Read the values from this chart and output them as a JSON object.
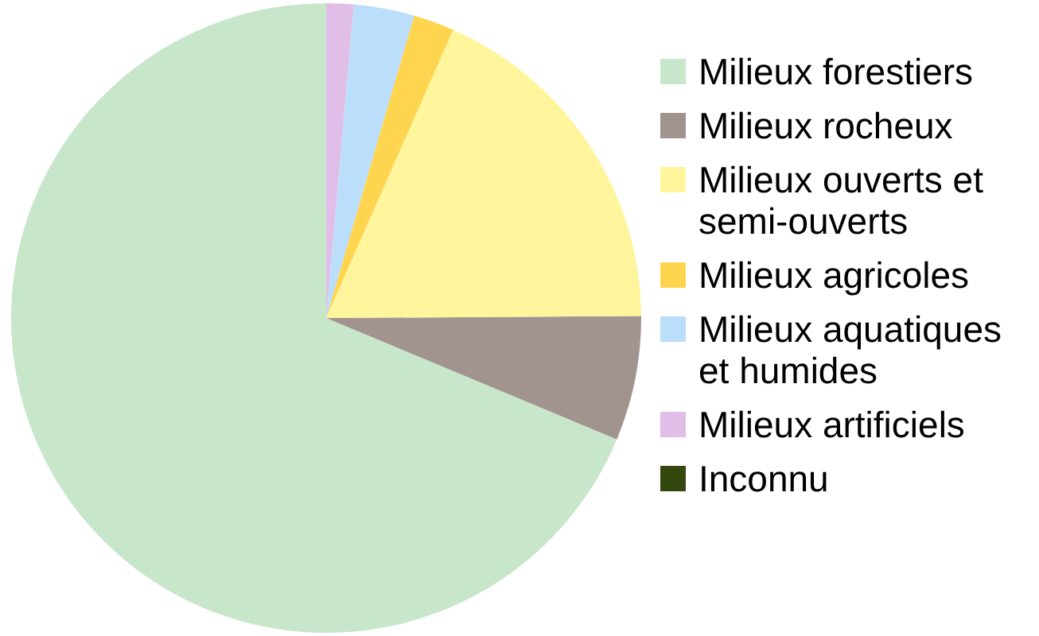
{
  "chart_data": {
    "type": "pie",
    "categories": [
      "Milieux forestiers",
      "Milieux rocheux",
      "Milieux ouverts et semi-ouverts",
      "Milieux agricoles",
      "Milieux aquatiques et humides",
      "Milieux artificiels",
      "Inconnu"
    ],
    "values": [
      68.7,
      6.4,
      18.3,
      2.1,
      3.1,
      1.4,
      0
    ],
    "colors": [
      "#c8e6c9",
      "#a1948f",
      "#fff59d",
      "#ffd54f",
      "#bbdefb",
      "#e1bee7",
      "#33470f"
    ],
    "legend": "right"
  }
}
